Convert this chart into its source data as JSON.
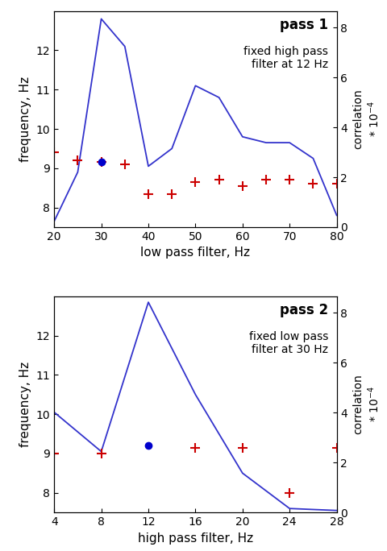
{
  "panel1": {
    "title": "pass 1",
    "subtitle": "fixed high pass\nfilter at 12 Hz",
    "xlabel": "low pass filter, Hz",
    "ylabel_left": "frequency, Hz",
    "xlim": [
      20,
      80
    ],
    "ylim_left": [
      7.5,
      13.0
    ],
    "ylim_right": [
      0,
      8.667
    ],
    "xticks": [
      20,
      30,
      40,
      50,
      60,
      70,
      80
    ],
    "yticks_left": [
      8,
      9,
      10,
      11,
      12
    ],
    "yticks_right": [
      0,
      2,
      4,
      6,
      8
    ],
    "line_x": [
      20,
      25,
      30,
      35,
      40,
      45,
      50,
      55,
      60,
      65,
      70,
      75,
      80
    ],
    "line_y_freq": [
      7.65,
      8.9,
      12.8,
      12.1,
      9.05,
      9.5,
      11.1,
      10.8,
      9.8,
      9.65,
      9.65,
      9.25,
      7.8
    ],
    "red_plus_x": [
      20,
      25,
      30,
      35,
      40,
      45,
      50,
      55,
      60,
      65,
      70,
      75,
      80
    ],
    "red_plus_y": [
      9.4,
      9.2,
      9.15,
      9.1,
      8.35,
      8.35,
      8.65,
      8.7,
      8.55,
      8.7,
      8.7,
      8.6,
      8.6
    ],
    "blue_dot_x": [
      30
    ],
    "blue_dot_y": [
      9.15
    ]
  },
  "panel2": {
    "title": "pass 2",
    "subtitle": "fixed low pass\nfilter at 30 Hz",
    "xlabel": "high pass filter, Hz",
    "ylabel_left": "frequency, Hz",
    "xlim": [
      4,
      28
    ],
    "ylim_left": [
      7.5,
      13.0
    ],
    "ylim_right": [
      0,
      8.667
    ],
    "xticks": [
      4,
      8,
      12,
      16,
      20,
      24,
      28
    ],
    "yticks_left": [
      8,
      9,
      10,
      11,
      12
    ],
    "yticks_right": [
      0,
      2,
      4,
      6,
      8
    ],
    "line_x": [
      4,
      8,
      12,
      16,
      20,
      24,
      28
    ],
    "line_y_freq": [
      10.05,
      9.05,
      12.85,
      10.5,
      8.5,
      7.6,
      7.55
    ],
    "red_plus_x": [
      4,
      8,
      16,
      20,
      28
    ],
    "red_plus_y": [
      9.0,
      9.0,
      9.15,
      9.15,
      9.15
    ],
    "red_plus_x2": [
      24
    ],
    "red_plus_y2": [
      8.0
    ],
    "blue_dot_x": [
      12
    ],
    "blue_dot_y": [
      9.2
    ]
  },
  "line_color": "#3333cc",
  "red_color": "#cc0000",
  "blue_dot_color": "#0000cc",
  "bg_color": "#ffffff",
  "text_color": "#000000"
}
